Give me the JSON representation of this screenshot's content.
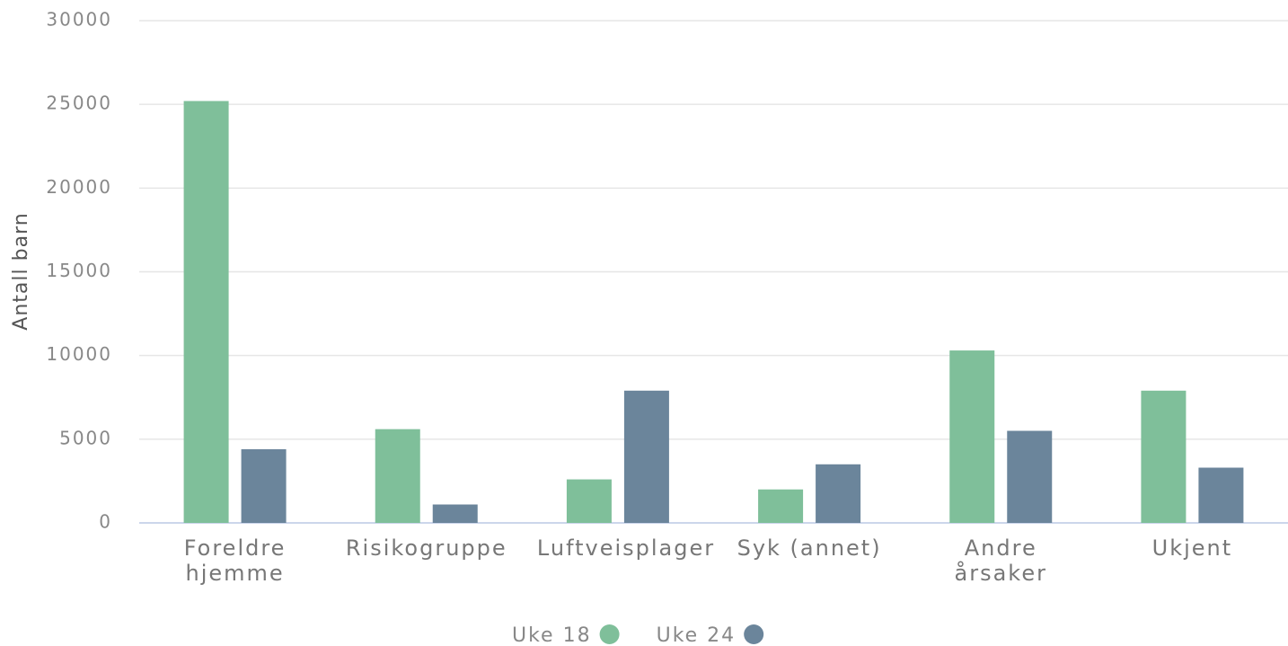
{
  "chart_data": {
    "type": "bar",
    "y_label": "Antall barn",
    "categories": [
      "Foreldre hjemme",
      "Risikogruppe",
      "Luftveisplager",
      "Syk (annet)",
      "Andre årsaker",
      "Ukjent"
    ],
    "series": [
      {
        "name": "Uke 18",
        "color": "#7fbf9a",
        "values": [
          25200,
          5600,
          2600,
          2000,
          10300,
          7900
        ]
      },
      {
        "name": "Uke 24",
        "color": "#6b859b",
        "values": [
          4400,
          1100,
          7900,
          3500,
          5500,
          3300
        ]
      }
    ],
    "ylim": [
      0,
      30000
    ],
    "yticks": [
      0,
      5000,
      10000,
      15000,
      20000,
      25000,
      30000
    ],
    "grid": true,
    "legend": "bottom"
  }
}
